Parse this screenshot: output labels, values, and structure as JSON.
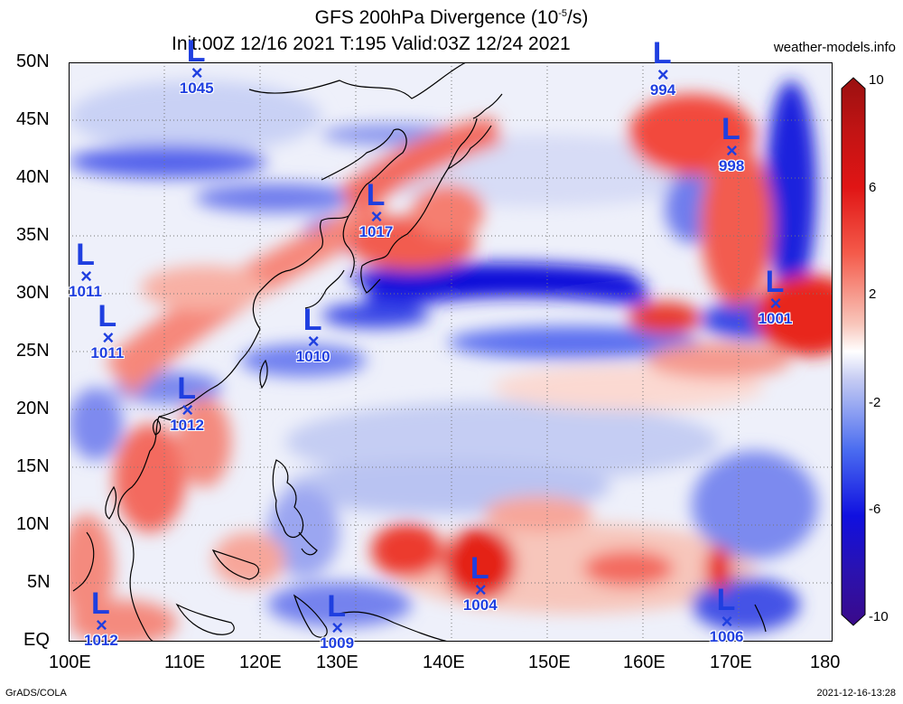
{
  "header": {
    "title_prefix": "GFS 200hPa Divergence (10",
    "title_exp": "-5",
    "title_suffix": "/s)",
    "subtitle": "Init:00Z 12/16 2021 T:195 Valid:03Z 12/24 2021",
    "site": "weather-models.info"
  },
  "footer": {
    "left": "GrADS/COLA",
    "right": "2021-12-16-13:28"
  },
  "axes": {
    "lat_labels": [
      "50N",
      "45N",
      "40N",
      "35N",
      "30N",
      "25N",
      "20N",
      "15N",
      "10N",
      "5N",
      "EQ"
    ],
    "lon_labels": [
      "100E",
      "110E",
      "120E",
      "130E",
      "140E",
      "150E",
      "160E",
      "170E",
      "180"
    ]
  },
  "colorbar": {
    "labels": [
      "10",
      "6",
      "2",
      "-2",
      "-6",
      "-10"
    ],
    "colors": [
      "#3a0a8a",
      "#1010e0",
      "#4a6cf0",
      "#a9b6f2",
      "#ffffff",
      "#f4b3a6",
      "#f45a4a",
      "#e01515",
      "#9a1010"
    ]
  },
  "lows": [
    {
      "label": "L",
      "pressure": "1045",
      "lon": 113.5,
      "lat": 49.0
    },
    {
      "label": "L",
      "pressure": "994",
      "lon": 162.3,
      "lat": 48.8
    },
    {
      "label": "L",
      "pressure": "998",
      "lon": 169.5,
      "lat": 42.3
    },
    {
      "label": "L",
      "pressure": "1017",
      "lon": 132.3,
      "lat": 36.6
    },
    {
      "label": "L",
      "pressure": "1011",
      "lon": 101.9,
      "lat": 31.4
    },
    {
      "label": "L",
      "pressure": "1001",
      "lon": 174.1,
      "lat": 29.1
    },
    {
      "label": "L",
      "pressure": "1010",
      "lon": 125.7,
      "lat": 25.8
    },
    {
      "label": "L",
      "pressure": "1011",
      "lon": 104.2,
      "lat": 26.1
    },
    {
      "label": "L",
      "pressure": "1012",
      "lon": 112.5,
      "lat": 19.9
    },
    {
      "label": "L",
      "pressure": "1004",
      "lon": 143.2,
      "lat": 4.4
    },
    {
      "label": "L",
      "pressure": "1012",
      "lon": 103.5,
      "lat": 1.3
    },
    {
      "label": "L",
      "pressure": "1009",
      "lon": 128.2,
      "lat": 1.1
    },
    {
      "label": "L",
      "pressure": "1006",
      "lon": 169.0,
      "lat": 1.6
    }
  ]
}
